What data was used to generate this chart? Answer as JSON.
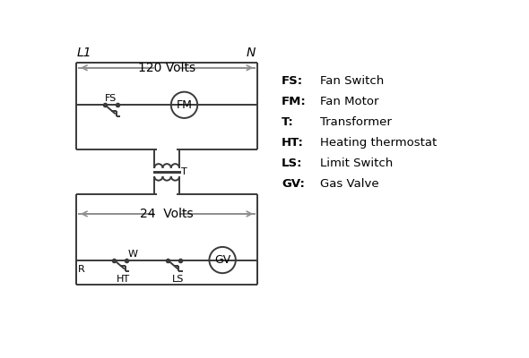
{
  "bg_color": "#ffffff",
  "line_color": "#3a3a3a",
  "arrow_color": "#909090",
  "text_color": "#000000",
  "legend": [
    [
      "FS:",
      "Fan Switch"
    ],
    [
      "FM:",
      "Fan Motor"
    ],
    [
      "T:",
      "Transformer"
    ],
    [
      "HT:",
      "Heating thermostat"
    ],
    [
      "LS:",
      "Limit Switch"
    ],
    [
      "GV:",
      "Gas Valve"
    ]
  ],
  "label_L1": "L1",
  "label_N": "N",
  "label_120V": "120 Volts",
  "label_24V": "24  Volts",
  "label_T": "T",
  "label_R": "R",
  "label_W": "W",
  "label_FS": "FS",
  "label_FM": "FM",
  "label_HT": "HT",
  "label_LS": "LS",
  "label_GV": "GV"
}
